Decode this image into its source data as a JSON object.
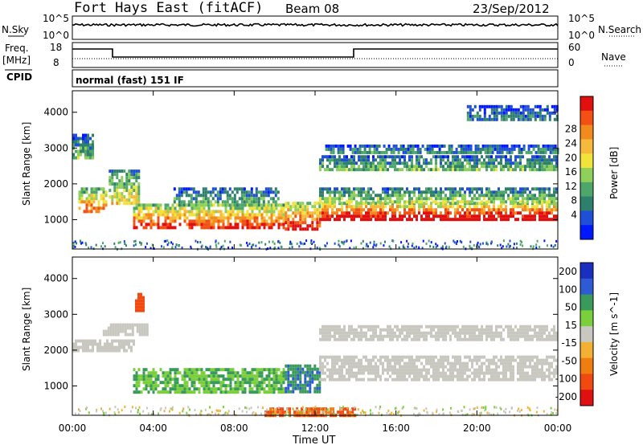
{
  "header": {
    "station": "Fort Hays East (fitACF)",
    "beam": "Beam 08",
    "date": "23/Sep/2012"
  },
  "panels": {
    "nsky": {
      "left_label": "N.Sky",
      "right_label": "N.Search",
      "left_ticks": [
        "10^5",
        "10^0"
      ],
      "right_ticks": [
        "10^5",
        "10^0"
      ]
    },
    "freq": {
      "left_label_top": "Freq.",
      "left_label_unit": "[MHz]",
      "right_label": "Nave",
      "left_ticks": [
        "18",
        "8"
      ],
      "right_ticks": [
        "60",
        "0"
      ]
    },
    "cpid": {
      "left_label": "CPID",
      "program": "normal (fast) 151 IF"
    }
  },
  "chart_data": [
    {
      "type": "heatmap",
      "name": "power",
      "ylabel": "Slant Range [km]",
      "ylim": [
        180,
        4600
      ],
      "yticks": [
        "4000",
        "3000",
        "2000",
        "1000"
      ],
      "colorbar": {
        "label": "Power [dB]",
        "ticks": [
          "28",
          "24",
          "20",
          "16",
          "12",
          "8",
          "4"
        ],
        "colors": [
          "#0018ff",
          "#1f4fd6",
          "#2e7f6c",
          "#4ea66a",
          "#8ed05a",
          "#f2e33a",
          "#f6b93b",
          "#f28a1e",
          "#f25014",
          "#e20f0f"
        ]
      },
      "bands": [
        {
          "t0": 0.0,
          "t1": 1.0,
          "r0": 2700,
          "r1": 3400,
          "p": 10
        },
        {
          "t0": 0.3,
          "t1": 1.7,
          "r0": 1200,
          "r1": 1900,
          "p": 20
        },
        {
          "t0": 1.8,
          "t1": 3.3,
          "r0": 1500,
          "r1": 2400,
          "p": 14
        },
        {
          "t0": 3.0,
          "t1": 10.5,
          "r0": 800,
          "r1": 1450,
          "p": 22
        },
        {
          "t0": 5.0,
          "t1": 10.2,
          "r0": 1450,
          "r1": 1900,
          "p": 9
        },
        {
          "t0": 10.5,
          "t1": 12.2,
          "r0": 700,
          "r1": 1500,
          "p": 24
        },
        {
          "t0": 12.2,
          "t1": 24.0,
          "r0": 1050,
          "r1": 1500,
          "p": 26
        },
        {
          "t0": 12.2,
          "t1": 24.0,
          "r0": 1500,
          "r1": 1900,
          "p": 12
        },
        {
          "t0": 12.2,
          "t1": 24.0,
          "r0": 2400,
          "r1": 2800,
          "p": 10
        },
        {
          "t0": 12.5,
          "t1": 24.0,
          "r0": 2900,
          "r1": 3100,
          "p": 7
        },
        {
          "t0": 19.5,
          "t1": 24.0,
          "r0": 3800,
          "r1": 4200,
          "p": 6
        }
      ]
    },
    {
      "type": "heatmap",
      "name": "velocity",
      "ylabel": "Slant Range [km]",
      "ylim": [
        180,
        4600
      ],
      "yticks": [
        "4000",
        "3000",
        "2000",
        "1000"
      ],
      "colorbar": {
        "label": "Velocity [m s^-1]",
        "ticks": [
          "200",
          "100",
          "50",
          "15",
          "-15",
          "-50",
          "-100",
          "-200"
        ],
        "colors": [
          "#1a2fbf",
          "#2e5bd3",
          "#3a9a5b",
          "#7ccf3c",
          "#c8c8c0",
          "#f2b035",
          "#f07d10",
          "#f04a10",
          "#e01010"
        ]
      },
      "bands": [
        {
          "t0": 0.0,
          "t1": 3.0,
          "r0": 2000,
          "r1": 2300,
          "v": 0
        },
        {
          "t0": 1.5,
          "t1": 3.7,
          "r0": 2400,
          "r1": 2750,
          "v": 0
        },
        {
          "t0": 3.0,
          "t1": 10.5,
          "r0": 850,
          "r1": 1500,
          "v": 30
        },
        {
          "t0": 10.5,
          "t1": 12.2,
          "r0": 800,
          "r1": 1600,
          "v": 70
        },
        {
          "t0": 12.2,
          "t1": 24.0,
          "r0": 1200,
          "r1": 1850,
          "v": 0
        },
        {
          "t0": 12.2,
          "t1": 24.0,
          "r0": 2300,
          "r1": 2700,
          "v": 0
        },
        {
          "t0": 9.5,
          "t1": 14.0,
          "r0": 200,
          "r1": 400,
          "v": -80
        },
        {
          "t0": 3.1,
          "t1": 3.5,
          "r0": 3100,
          "r1": 3600,
          "v": -90
        }
      ]
    }
  ],
  "xaxis": {
    "label": "Time UT",
    "ticks": [
      "00:00",
      "04:00",
      "08:00",
      "12:00",
      "16:00",
      "20:00",
      "00:00"
    ]
  }
}
